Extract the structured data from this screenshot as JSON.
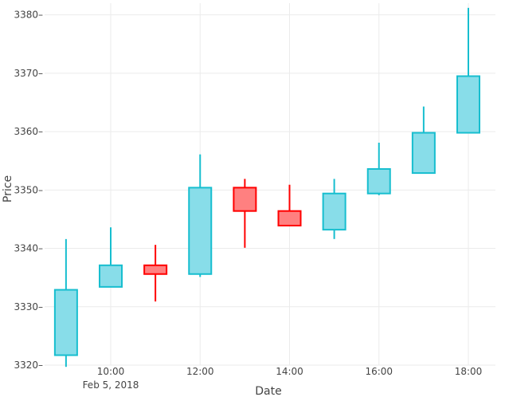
{
  "chart_data": {
    "type": "candlestick",
    "xlabel": "Date",
    "ylabel": "Price",
    "date_label": "Feb 5, 2018",
    "ylim": [
      3320,
      3382
    ],
    "y_ticks": [
      3320,
      3330,
      3340,
      3350,
      3360,
      3370,
      3380
    ],
    "y_tick_labels": [
      "3320",
      "3330",
      "3340",
      "3350",
      "3360",
      "3370",
      "3380"
    ],
    "x_ticks": [
      "10:00",
      "12:00",
      "14:00",
      "16:00",
      "18:00"
    ],
    "grid": true,
    "colors": {
      "increasing_line": "#17BECF",
      "increasing_fill": "#88DDE9",
      "decreasing_line": "#FF0000",
      "decreasing_fill": "#FF8080",
      "grid": "#ebebeb",
      "axis_text": "#444444"
    },
    "candles": [
      {
        "time": "09:00",
        "open": 3321.7,
        "high": 3341.6,
        "low": 3319.7,
        "close": 3332.9
      },
      {
        "time": "10:00",
        "open": 3333.4,
        "high": 3343.6,
        "low": 3333.4,
        "close": 3337.1
      },
      {
        "time": "11:00",
        "open": 3337.1,
        "high": 3340.6,
        "low": 3330.9,
        "close": 3335.6
      },
      {
        "time": "12:00",
        "open": 3335.6,
        "high": 3356.1,
        "low": 3335.1,
        "close": 3350.4
      },
      {
        "time": "13:00",
        "open": 3350.4,
        "high": 3351.9,
        "low": 3340.1,
        "close": 3346.4
      },
      {
        "time": "14:00",
        "open": 3346.4,
        "high": 3350.9,
        "low": 3343.9,
        "close": 3343.9
      },
      {
        "time": "15:00",
        "open": 3343.2,
        "high": 3351.9,
        "low": 3341.6,
        "close": 3349.4
      },
      {
        "time": "16:00",
        "open": 3349.4,
        "high": 3358.1,
        "low": 3349.1,
        "close": 3353.6
      },
      {
        "time": "17:00",
        "open": 3352.9,
        "high": 3364.3,
        "low": 3352.9,
        "close": 3359.8
      },
      {
        "time": "18:00",
        "open": 3359.8,
        "high": 3381.2,
        "low": 3359.8,
        "close": 3369.5
      }
    ]
  }
}
